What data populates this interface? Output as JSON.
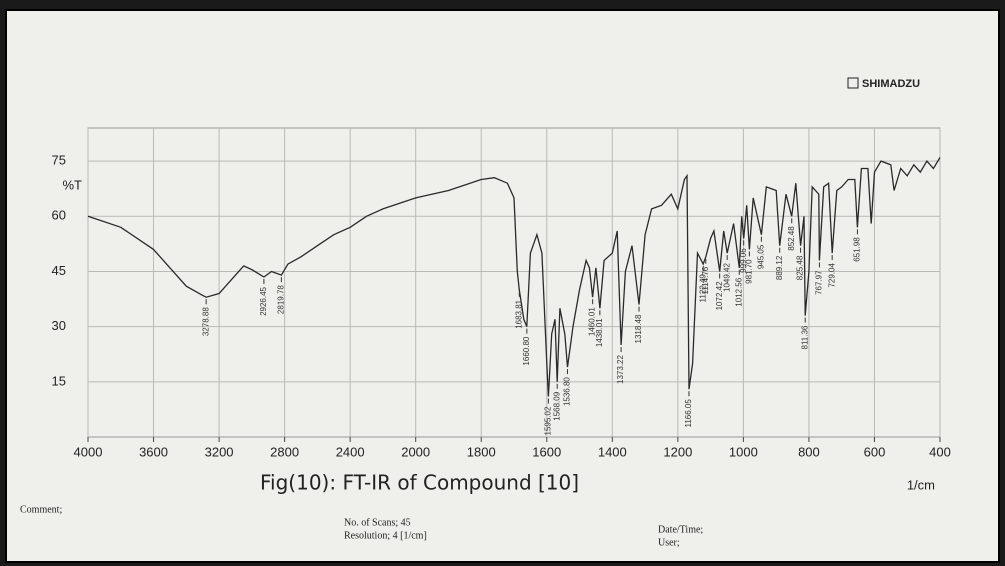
{
  "chart_data": {
    "type": "line",
    "brand": "SHIMADZU",
    "title": "Fig(10): FT-IR of Compound [10]",
    "ylabel": "%T",
    "xlabel": "1/cm",
    "xlim": [
      4000,
      400
    ],
    "x_break": 2000,
    "ylim": [
      0,
      84
    ],
    "xticks": [
      4000,
      3600,
      3200,
      2800,
      2400,
      2000,
      1800,
      1600,
      1400,
      1200,
      1000,
      800,
      600,
      400
    ],
    "yticks": [
      15,
      30,
      45,
      60,
      75
    ],
    "grid": true,
    "color": "#2a2a2a",
    "x": [
      4000,
      3800,
      3600,
      3500,
      3400,
      3300,
      3278.88,
      3200,
      3100,
      3050,
      3000,
      2926.45,
      2880,
      2819.78,
      2780,
      2700,
      2600,
      2500,
      2400,
      2300,
      2200,
      2100,
      2000,
      1900,
      1800,
      1760,
      1720,
      1700,
      1690,
      1683.81,
      1670,
      1660.8,
      1650,
      1630,
      1615,
      1600,
      1595.02,
      1585,
      1575,
      1568.09,
      1560,
      1545,
      1536.8,
      1520,
      1500,
      1480,
      1470,
      1460.01,
      1450,
      1438.01,
      1425,
      1400,
      1385,
      1373.22,
      1360,
      1340,
      1318.48,
      1300,
      1280,
      1250,
      1220,
      1200,
      1180,
      1172,
      1166.05,
      1155,
      1140,
      1122.49,
      1114.76,
      1100,
      1090,
      1072.42,
      1060,
      1049.42,
      1030,
      1012.56,
      1005,
      999.06,
      990,
      981.7,
      970,
      945.05,
      930,
      900,
      889.12,
      870,
      852.48,
      840,
      825.48,
      815,
      811.36,
      800,
      790,
      770,
      767.97,
      755,
      740,
      729.04,
      715,
      700,
      680,
      660,
      651.98,
      640,
      620,
      610,
      600,
      580,
      550,
      540,
      520,
      500,
      480,
      460,
      440,
      420,
      400
    ],
    "values": [
      60,
      57,
      51,
      46,
      41,
      38.5,
      38,
      39,
      44,
      46.5,
      45.5,
      43.5,
      45,
      44,
      47,
      49,
      52,
      55,
      57,
      60,
      62,
      63.5,
      65,
      67,
      70,
      70.5,
      69,
      65,
      45,
      40,
      32,
      30,
      50,
      55,
      50,
      20,
      11,
      28,
      32,
      15,
      35,
      28,
      19,
      30,
      40,
      48,
      46,
      38,
      46,
      35,
      48,
      50,
      56,
      25,
      45,
      52,
      36,
      55,
      62,
      63,
      66,
      62,
      70,
      71,
      13,
      20,
      50,
      47,
      49,
      54,
      56,
      45,
      56,
      50,
      58,
      46,
      60,
      54,
      63,
      51,
      65,
      55,
      68,
      67,
      52,
      66,
      60,
      69,
      52,
      60,
      33,
      45,
      68,
      66,
      48,
      68,
      69,
      50,
      67,
      68,
      70,
      70,
      57,
      73,
      73,
      58,
      72,
      75,
      74,
      67,
      73,
      71,
      74,
      72,
      75,
      73,
      76
    ],
    "peaks": [
      {
        "value": 3278.88,
        "label": "3278.88"
      },
      {
        "value": 2926.45,
        "label": "2926.45"
      },
      {
        "value": 2819.78,
        "label": "2819.78"
      },
      {
        "value": 1683.81,
        "label": "1683.81"
      },
      {
        "value": 1660.8,
        "label": "1660.80"
      },
      {
        "value": 1595.02,
        "label": "1595.02"
      },
      {
        "value": 1568.09,
        "label": "1568.09"
      },
      {
        "value": 1536.8,
        "label": "1536.80"
      },
      {
        "value": 1460.01,
        "label": "1460.01"
      },
      {
        "value": 1438.01,
        "label": "1438.01"
      },
      {
        "value": 1373.22,
        "label": "1373.22"
      },
      {
        "value": 1318.48,
        "label": "1318.48"
      },
      {
        "value": 1166.05,
        "label": "1166.05"
      },
      {
        "value": 1122.49,
        "label": "1122.49"
      },
      {
        "value": 1114.76,
        "label": "1114.76"
      },
      {
        "value": 1072.42,
        "label": "1072.42"
      },
      {
        "value": 1049.42,
        "label": "1049.42"
      },
      {
        "value": 1012.56,
        "label": "1012.56"
      },
      {
        "value": 999.06,
        "label": "999.06"
      },
      {
        "value": 981.7,
        "label": "981.70"
      },
      {
        "value": 945.05,
        "label": "945.05"
      },
      {
        "value": 889.12,
        "label": "889.12"
      },
      {
        "value": 852.48,
        "label": "852.48"
      },
      {
        "value": 825.48,
        "label": "825.48"
      },
      {
        "value": 811.36,
        "label": "811.36"
      },
      {
        "value": 767.97,
        "label": "767.97"
      },
      {
        "value": 729.04,
        "label": "729.04"
      },
      {
        "value": 651.98,
        "label": "651.98"
      }
    ]
  },
  "footer": {
    "comment": "Comment;",
    "scans": "No. of Scans; 45",
    "resolution": "Resolution;  4 [1/cm]",
    "date": "Date/Time;",
    "user": "User;"
  }
}
